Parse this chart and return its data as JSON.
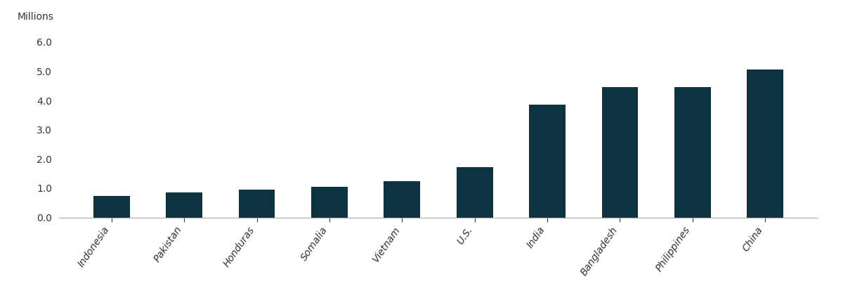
{
  "categories": [
    "Indonesia",
    "Pakistan",
    "Honduras",
    "Somalia",
    "Vietnam",
    "U.S.",
    "India",
    "Bangladesh",
    "Philippines",
    "China"
  ],
  "values": [
    0.73,
    0.86,
    0.96,
    1.05,
    1.25,
    1.72,
    3.87,
    4.45,
    4.45,
    5.07
  ],
  "bar_color": "#0d3340",
  "ylabel": "Millions",
  "ylim": [
    0,
    6.2
  ],
  "yticks": [
    0.0,
    1.0,
    2.0,
    3.0,
    4.0,
    5.0,
    6.0
  ],
  "background_color": "#ffffff",
  "ylabel_fontsize": 10,
  "tick_fontsize": 10,
  "bar_width": 0.5
}
